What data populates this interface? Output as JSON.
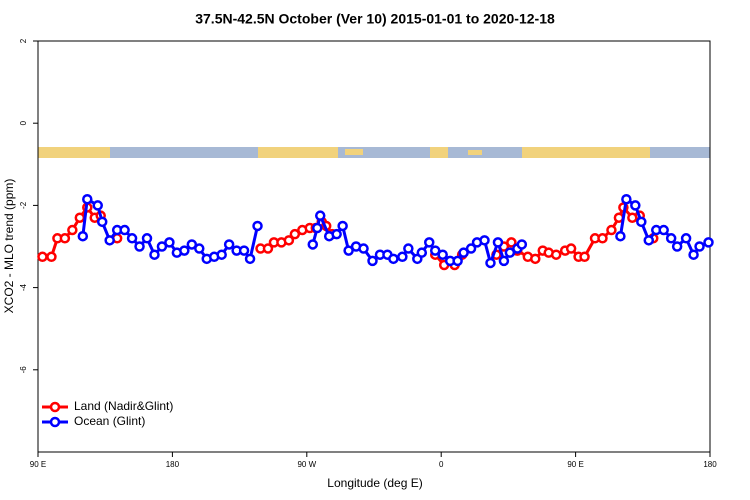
{
  "chart_data": {
    "type": "line",
    "title": "37.5N-42.5N October (Ver 10)   2015-01-01 to 2020-12-18",
    "xlabel": "Longitude (deg E)",
    "ylabel": "XCO2 - MLO trend (ppm)",
    "xlim": [
      90,
      540
    ],
    "xticks": [
      {
        "value": 90,
        "label": "90 E"
      },
      180,
      {
        "value": 270,
        "label": "90 W"
      },
      {
        "value": 360,
        "label": "0"
      },
      {
        "value": 450,
        "label": "90 E"
      },
      {
        "value": 540,
        "label": "180"
      }
    ],
    "ylim": [
      -8,
      2
    ],
    "yticks": [
      2,
      0,
      -2,
      -4,
      -6
    ],
    "legend": "bottom-left",
    "series": [
      {
        "name": "Land (Nadir&Glint)",
        "color": "#ff0000",
        "x": [
          93,
          99,
          103,
          108,
          113,
          118,
          123,
          128,
          132,
          null,
          143,
          null,
          239,
          244,
          248,
          253,
          258,
          262,
          267,
          272,
          276,
          280,
          283,
          287,
          null,
          356,
          362,
          null,
          369,
          374,
          null,
          397,
          402,
          407,
          null,
          411,
          418,
          423,
          428,
          432,
          437,
          443,
          447,
          452,
          456,
          463,
          468,
          474,
          479,
          482,
          488,
          493,
          null,
          502
        ],
        "values": [
          -3.25,
          -3.25,
          -2.8,
          -2.8,
          -2.6,
          -2.3,
          -2.05,
          -2.3,
          -2.25,
          null,
          -2.8,
          null,
          -3.05,
          -3.05,
          -2.9,
          -2.9,
          -2.85,
          -2.7,
          -2.6,
          -2.55,
          -2.55,
          -2.4,
          -2.5,
          -2.7,
          null,
          -3.2,
          -3.45,
          null,
          -3.45,
          -3.2,
          null,
          -3.2,
          -3.0,
          -2.9,
          null,
          -3.1,
          -3.25,
          -3.3,
          -3.1,
          -3.15,
          -3.2,
          -3.1,
          -3.05,
          -3.25,
          -3.25,
          -2.8,
          -2.8,
          -2.6,
          -2.3,
          -2.05,
          -2.3,
          -2.25,
          null,
          -2.8
        ]
      },
      {
        "name": "Ocean (Glint)",
        "color": "#0000ff",
        "x": [
          120,
          123,
          130,
          133,
          138,
          143,
          148,
          153,
          158,
          163,
          168,
          173,
          178,
          183,
          188,
          193,
          198,
          203,
          208,
          213,
          218,
          223,
          228,
          232,
          237,
          null,
          274,
          277,
          279,
          285,
          290,
          294,
          298,
          303,
          308,
          314,
          319,
          324,
          328,
          334,
          338,
          344,
          347,
          352,
          356,
          361,
          366,
          371,
          375,
          380,
          384,
          389,
          393,
          398,
          402,
          406,
          411,
          414,
          null,
          480,
          484,
          490,
          494,
          499,
          504,
          509,
          514,
          518,
          524,
          529,
          533,
          539
        ],
        "values": [
          -2.75,
          -1.85,
          -2.0,
          -2.4,
          -2.85,
          -2.6,
          -2.6,
          -2.8,
          -3.0,
          -2.8,
          -3.2,
          -3.0,
          -2.9,
          -3.15,
          -3.1,
          -2.95,
          -3.05,
          -3.3,
          -3.25,
          -3.2,
          -2.95,
          -3.1,
          -3.1,
          -3.3,
          -2.5,
          null,
          -2.95,
          -2.55,
          -2.25,
          -2.75,
          -2.7,
          -2.5,
          -3.1,
          -3.0,
          -3.05,
          -3.35,
          -3.2,
          -3.2,
          -3.3,
          -3.25,
          -3.05,
          -3.3,
          -3.15,
          -2.9,
          -3.1,
          -3.2,
          -3.35,
          -3.35,
          -3.15,
          -3.05,
          -2.9,
          -2.85,
          -3.4,
          -2.9,
          -3.35,
          -3.15,
          -3.05,
          -2.95,
          null,
          -2.75,
          -1.85,
          -2.0,
          -2.4,
          -2.85,
          -2.6,
          -2.6,
          -2.8,
          -3.0,
          -2.8,
          -3.2,
          -3.0,
          -2.9
        ]
      }
    ]
  }
}
